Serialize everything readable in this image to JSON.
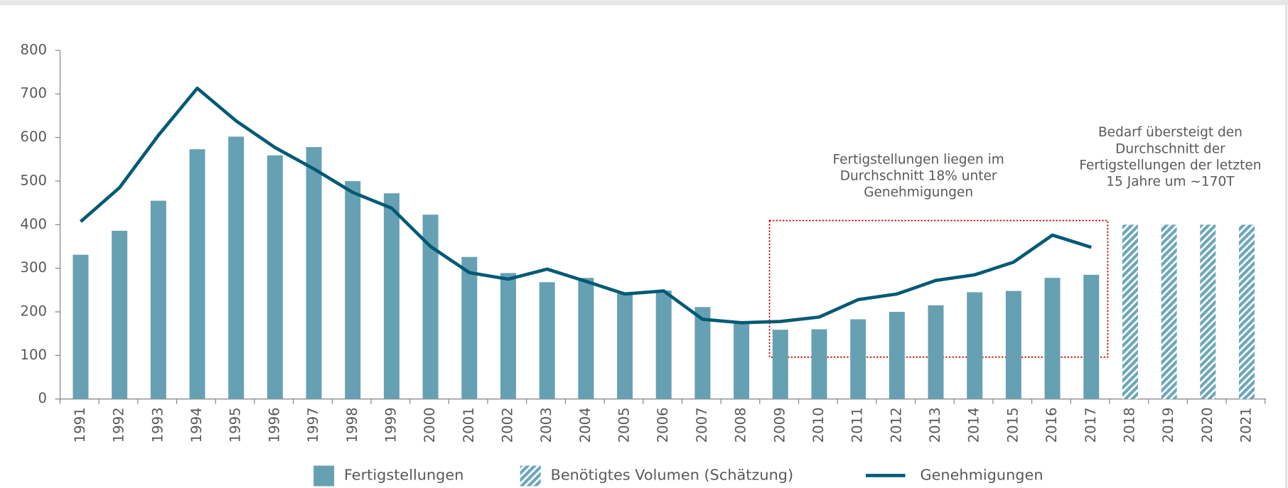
{
  "chart_data": {
    "type": "bar",
    "categories": [
      "1991",
      "1992",
      "1993",
      "1994",
      "1995",
      "1996",
      "1997",
      "1998",
      "1999",
      "2000",
      "2001",
      "2002",
      "2003",
      "2004",
      "2005",
      "2006",
      "2007",
      "2008",
      "2009",
      "2010",
      "2011",
      "2012",
      "2013",
      "2014",
      "2015",
      "2016",
      "2017",
      "2018",
      "2019",
      "2020",
      "2021"
    ],
    "series": [
      {
        "name": "Fertigstellungen",
        "type": "bar",
        "color": "#66a1b3",
        "values": [
          331,
          386,
          455,
          573,
          602,
          559,
          578,
          500,
          472,
          423,
          326,
          289,
          268,
          278,
          242,
          249,
          211,
          176,
          159,
          160,
          183,
          200,
          215,
          245,
          248,
          278,
          285,
          null,
          null,
          null,
          null
        ]
      },
      {
        "name": "Benötigtes Volumen (Schätzung)",
        "type": "hatched-bar",
        "color": "#6aa6b8",
        "values": [
          null,
          null,
          null,
          null,
          null,
          null,
          null,
          null,
          null,
          null,
          null,
          null,
          null,
          null,
          null,
          null,
          null,
          null,
          null,
          null,
          null,
          null,
          null,
          null,
          null,
          null,
          null,
          400,
          400,
          400,
          400
        ]
      },
      {
        "name": "Genehmigungen",
        "type": "line",
        "color": "#005a75",
        "values": [
          407,
          485,
          605,
          713,
          638,
          577,
          528,
          474,
          438,
          350,
          290,
          275,
          298,
          270,
          241,
          248,
          183,
          175,
          178,
          188,
          228,
          241,
          272,
          285,
          314,
          376,
          348,
          null,
          null,
          null,
          null
        ]
      }
    ],
    "ylim": [
      0,
      800
    ],
    "yticks": [
      0,
      100,
      200,
      300,
      400,
      500,
      600,
      700,
      800
    ],
    "annotations": [
      {
        "lines": [
          "Fertigstellungen liegen im",
          "Durchschnitt 18% unter",
          "Genehmigungen"
        ]
      },
      {
        "lines": [
          "Bedarf übersteigt den",
          "Durchschnitt der",
          "Fertigstellungen der letzten",
          "15 Jahre um ~170T"
        ]
      }
    ],
    "legend": "bottom"
  }
}
